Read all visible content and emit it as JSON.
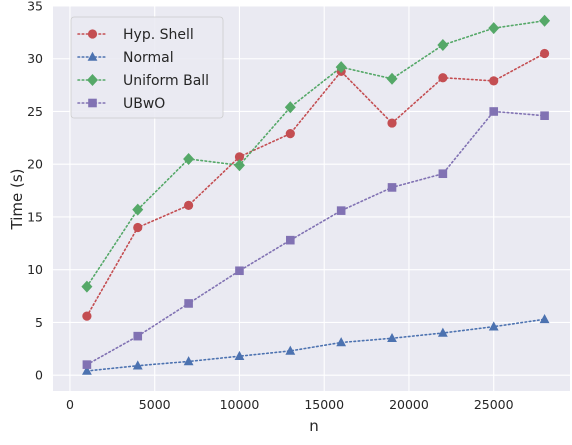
{
  "chart_data": {
    "type": "line",
    "xlabel": "n",
    "ylabel": "Time (s)",
    "xlim": [
      -1000,
      29500
    ],
    "ylim": [
      -1.5,
      35
    ],
    "xticks": [
      0,
      5000,
      10000,
      15000,
      20000,
      25000
    ],
    "yticks": [
      0,
      5,
      10,
      15,
      20,
      25,
      30,
      35
    ],
    "grid": true,
    "legend_position": "top-left",
    "x": [
      1000,
      4000,
      7000,
      10000,
      13000,
      16000,
      19000,
      22000,
      25000,
      28000
    ],
    "series": [
      {
        "name": "Hyp. Shell",
        "color": "#c44e52",
        "marker": "circle",
        "values": [
          5.6,
          14.0,
          16.1,
          20.7,
          22.9,
          28.8,
          23.9,
          28.2,
          27.9,
          30.5
        ]
      },
      {
        "name": "Normal",
        "color": "#4c72b0",
        "marker": "triangle",
        "values": [
          0.4,
          0.9,
          1.3,
          1.8,
          2.3,
          3.1,
          3.5,
          4.0,
          4.6,
          5.3
        ]
      },
      {
        "name": "Uniform Ball",
        "color": "#55a868",
        "marker": "diamond",
        "values": [
          8.4,
          15.7,
          20.5,
          19.9,
          25.4,
          29.2,
          28.1,
          31.3,
          32.9,
          33.6
        ]
      },
      {
        "name": "UBwO",
        "color": "#8172b3",
        "marker": "square",
        "values": [
          1.0,
          3.7,
          6.8,
          9.9,
          12.8,
          15.6,
          17.8,
          19.1,
          25.0,
          24.6
        ]
      }
    ]
  }
}
